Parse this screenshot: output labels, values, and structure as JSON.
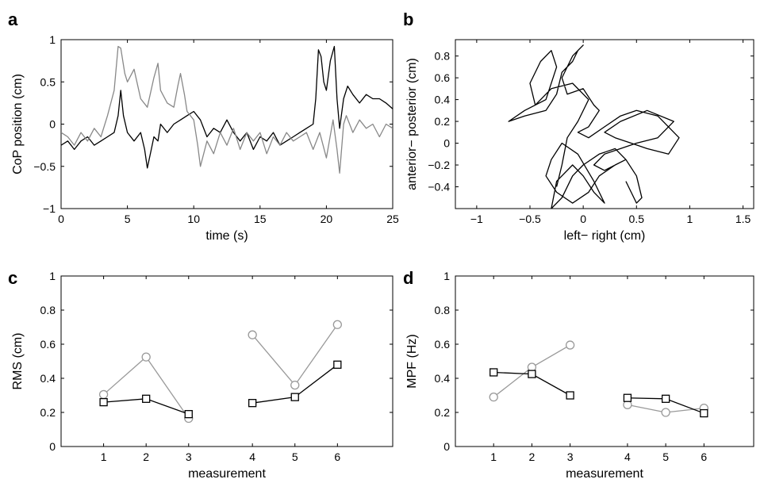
{
  "chart_data": [
    {
      "panel": "a",
      "type": "line",
      "xlabel": "time (s)",
      "ylabel": "CoP position (cm)",
      "xlim": [
        0,
        25
      ],
      "ylim": [
        -1,
        1
      ],
      "xticks": [
        0,
        5,
        10,
        15,
        20,
        25
      ],
      "xtick_labels": [
        "0",
        "5",
        "10",
        "15",
        "20",
        "25"
      ],
      "yticks": [
        -1,
        -0.5,
        0,
        0.5,
        1
      ],
      "ytick_labels": [
        "−1",
        "−0.5",
        "0",
        "0.5",
        "1"
      ],
      "series": [
        {
          "color": "#000000",
          "x": [
            0,
            0.5,
            1,
            1.5,
            2,
            2.5,
            3,
            3.5,
            4,
            4.3,
            4.5,
            4.7,
            5,
            5.5,
            6,
            6.3,
            6.5,
            6.8,
            7,
            7.3,
            7.5,
            8,
            8.5,
            9,
            9.5,
            10,
            10.5,
            11,
            11.5,
            12,
            12.5,
            13,
            13.5,
            14,
            14.5,
            15,
            15.5,
            16,
            16.5,
            17,
            17.5,
            18,
            18.5,
            19,
            19.2,
            19.4,
            19.6,
            19.8,
            20,
            20.3,
            20.6,
            20.8,
            21,
            21.3,
            21.6,
            22,
            22.5,
            23,
            23.5,
            24,
            24.5,
            25
          ],
          "y": [
            -0.25,
            -0.2,
            -0.3,
            -0.2,
            -0.15,
            -0.25,
            -0.2,
            -0.15,
            -0.1,
            0.1,
            0.4,
            0.1,
            -0.1,
            -0.2,
            -0.1,
            -0.3,
            -0.52,
            -0.3,
            -0.15,
            -0.2,
            0.0,
            -0.1,
            0.0,
            0.05,
            0.1,
            0.15,
            0.05,
            -0.15,
            -0.05,
            -0.1,
            0.05,
            -0.1,
            -0.2,
            -0.1,
            -0.3,
            -0.15,
            -0.2,
            -0.1,
            -0.25,
            -0.2,
            -0.15,
            -0.1,
            -0.05,
            0.0,
            0.3,
            0.88,
            0.8,
            0.5,
            0.4,
            0.75,
            0.92,
            0.3,
            -0.05,
            0.3,
            0.45,
            0.35,
            0.25,
            0.35,
            0.3,
            0.3,
            0.25,
            0.18
          ]
        },
        {
          "color": "#888888",
          "x": [
            0,
            0.5,
            1,
            1.5,
            2,
            2.5,
            3,
            3.5,
            4,
            4.3,
            4.5,
            4.8,
            5,
            5.5,
            6,
            6.5,
            7,
            7.3,
            7.5,
            8,
            8.5,
            8.8,
            9,
            9.3,
            9.5,
            10,
            10.3,
            10.5,
            11,
            11.5,
            12,
            12.5,
            13,
            13.5,
            14,
            14.5,
            15,
            15.5,
            16,
            16.5,
            17,
            17.5,
            18,
            18.5,
            19,
            19.5,
            20,
            20.5,
            20.8,
            21,
            21.3,
            21.5,
            22,
            22.5,
            23,
            23.5,
            24,
            24.5,
            25
          ],
          "y": [
            -0.1,
            -0.15,
            -0.25,
            -0.1,
            -0.2,
            -0.05,
            -0.15,
            0.1,
            0.4,
            0.92,
            0.9,
            0.6,
            0.5,
            0.65,
            0.3,
            0.2,
            0.55,
            0.72,
            0.4,
            0.25,
            0.2,
            0.45,
            0.6,
            0.35,
            0.15,
            0.05,
            -0.25,
            -0.5,
            -0.2,
            -0.35,
            -0.1,
            -0.25,
            -0.05,
            -0.3,
            -0.1,
            -0.2,
            -0.1,
            -0.35,
            -0.15,
            -0.25,
            -0.1,
            -0.2,
            -0.15,
            -0.1,
            -0.3,
            -0.1,
            -0.4,
            0.05,
            -0.3,
            -0.58,
            0.0,
            0.1,
            -0.1,
            0.05,
            -0.05,
            0.0,
            -0.15,
            0.0,
            -0.05
          ]
        }
      ]
    },
    {
      "panel": "b",
      "type": "line",
      "xlabel": "left− right (cm)",
      "ylabel": "anterior− posterior (cm)",
      "xlim": [
        -1.2,
        1.6
      ],
      "ylim": [
        -0.6,
        0.95
      ],
      "xticks": [
        -1,
        -0.5,
        0,
        0.5,
        1,
        1.5
      ],
      "xtick_labels": [
        "−1",
        "−0.5",
        "0",
        "0.5",
        "1",
        "1.5"
      ],
      "yticks": [
        -0.4,
        -0.2,
        0,
        0.2,
        0.4,
        0.6,
        0.8
      ],
      "ytick_labels": [
        "−0.4",
        "−0.2",
        "0",
        "0.2",
        "0.4",
        "0.6",
        "0.8"
      ],
      "series": [
        {
          "color": "#000000",
          "x": [
            -0.25,
            -0.2,
            -0.15,
            -0.05,
            0.05,
            -0.1,
            -0.3,
            -0.45,
            -0.5,
            -0.4,
            -0.3,
            -0.25,
            -0.35,
            -0.55,
            -0.7,
            -0.55,
            -0.35,
            -0.25,
            -0.2,
            -0.1,
            -0.05,
            0.0,
            -0.1,
            -0.2,
            -0.15,
            0.0,
            0.1,
            0.15,
            0.05,
            -0.05,
            0.05,
            0.2,
            0.35,
            0.5,
            0.7,
            0.9,
            0.8,
            0.6,
            0.45,
            0.3,
            0.2,
            0.35,
            0.6,
            0.85,
            0.7,
            0.5,
            0.35,
            0.2,
            0.1,
            0.2,
            0.4,
            0.3,
            0.15,
            0.0,
            -0.1,
            -0.2,
            -0.3,
            -0.25,
            -0.1,
            0.0,
            0.1,
            0.2,
            0.1,
            -0.05,
            -0.2,
            -0.3,
            -0.35,
            -0.25,
            -0.1,
            0.05,
            0.15,
            0.3,
            0.4,
            0.5,
            0.55,
            0.5,
            0.45,
            0.4
          ],
          "y": [
            -0.4,
            -0.2,
            0.05,
            0.2,
            0.4,
            0.55,
            0.5,
            0.35,
            0.55,
            0.75,
            0.85,
            0.7,
            0.4,
            0.3,
            0.2,
            0.25,
            0.3,
            0.45,
            0.65,
            0.75,
            0.85,
            0.9,
            0.8,
            0.6,
            0.45,
            0.5,
            0.35,
            0.3,
            0.15,
            0.1,
            0.05,
            0.15,
            0.25,
            0.3,
            0.25,
            0.05,
            -0.1,
            -0.05,
            0.0,
            0.05,
            0.1,
            0.2,
            0.3,
            0.2,
            0.05,
            0.0,
            -0.05,
            -0.1,
            -0.2,
            -0.25,
            -0.15,
            -0.05,
            -0.1,
            -0.2,
            -0.3,
            -0.5,
            -0.6,
            -0.35,
            -0.2,
            -0.3,
            -0.45,
            -0.55,
            -0.35,
            -0.1,
            0.0,
            -0.15,
            -0.3,
            -0.45,
            -0.55,
            -0.45,
            -0.3,
            -0.2,
            -0.15,
            -0.3,
            -0.5,
            -0.55,
            -0.45,
            -0.35
          ]
        }
      ]
    },
    {
      "panel": "c",
      "type": "line",
      "xlabel": "measurement",
      "ylabel": "RMS (cm)",
      "xlim": [
        0,
        7.8
      ],
      "ylim": [
        0,
        1
      ],
      "x_positions": [
        1,
        2,
        3,
        4.5,
        5.5,
        6.5
      ],
      "xtick_labels": [
        "1",
        "2",
        "3",
        "4",
        "5",
        "6"
      ],
      "yticks": [
        0,
        0.2,
        0.4,
        0.6,
        0.8,
        1
      ],
      "ytick_labels": [
        "0",
        "0.2",
        "0.4",
        "0.6",
        "0.8",
        "1"
      ],
      "segments": [
        [
          0,
          1,
          2
        ],
        [
          3,
          4,
          5
        ]
      ],
      "series": [
        {
          "marker": "circle",
          "color": "#999999",
          "values": [
            0.305,
            0.525,
            0.165,
            0.655,
            0.36,
            0.715
          ]
        },
        {
          "marker": "square",
          "color": "#000000",
          "values": [
            0.26,
            0.28,
            0.19,
            0.255,
            0.29,
            0.48
          ]
        }
      ]
    },
    {
      "panel": "d",
      "type": "line",
      "xlabel": "measurement",
      "ylabel": "MPF (Hz)",
      "xlim": [
        0,
        7.8
      ],
      "ylim": [
        0,
        1
      ],
      "x_positions": [
        1,
        2,
        3,
        4.5,
        5.5,
        6.5
      ],
      "xtick_labels": [
        "1",
        "2",
        "3",
        "4",
        "5",
        "6"
      ],
      "yticks": [
        0,
        0.2,
        0.4,
        0.6,
        0.8,
        1
      ],
      "ytick_labels": [
        "0",
        "0.2",
        "0.4",
        "0.6",
        "0.8",
        "1"
      ],
      "segments": [
        [
          0,
          1,
          2
        ],
        [
          3,
          4,
          5
        ]
      ],
      "series": [
        {
          "marker": "circle",
          "color": "#999999",
          "values": [
            0.29,
            0.465,
            0.595,
            0.245,
            0.2,
            0.225
          ]
        },
        {
          "marker": "square",
          "color": "#000000",
          "values": [
            0.435,
            0.425,
            0.3,
            0.285,
            0.28,
            0.195
          ]
        }
      ]
    }
  ]
}
